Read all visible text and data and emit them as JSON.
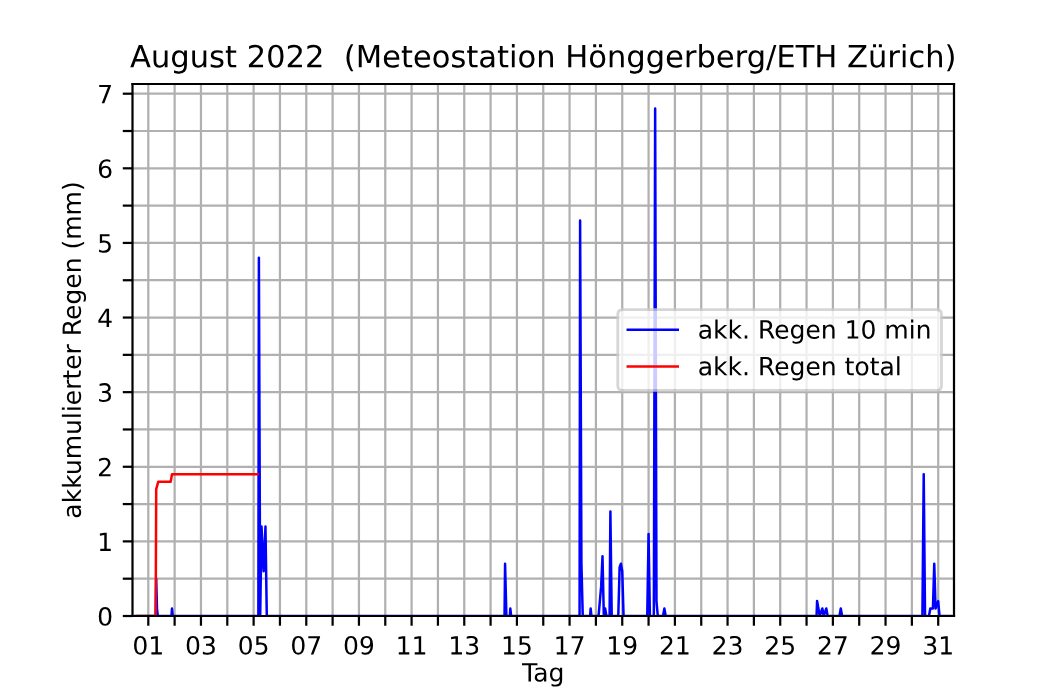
{
  "chart_data": {
    "type": "line",
    "title": "August 2022  (Meteostation Hönggerberg/ETH Zürich)",
    "xlabel": "Tag",
    "ylabel": "akkumulierter Regen (mm)",
    "series": [
      {
        "name": "akk. Regen 10 min",
        "color": "#0000ff",
        "x": [
          0.5,
          1.28,
          1.3,
          1.33,
          1.36,
          1.88,
          1.9,
          1.93,
          5.18,
          5.2,
          5.25,
          5.3,
          5.38,
          5.45,
          5.5,
          14.53,
          14.55,
          14.6,
          14.73,
          14.75,
          14.78,
          17.38,
          17.4,
          17.45,
          17.5,
          17.78,
          17.8,
          17.83,
          18.1,
          18.15,
          18.2,
          18.25,
          18.3,
          18.35,
          18.4,
          18.52,
          18.55,
          18.6,
          18.85,
          18.9,
          18.95,
          19.0,
          19.05,
          19.95,
          20.0,
          20.05,
          20.2,
          20.25,
          20.3,
          20.35,
          20.55,
          20.6,
          20.65,
          26.38,
          26.4,
          26.45,
          26.5,
          26.6,
          26.65,
          26.75,
          26.8,
          27.25,
          27.3,
          27.35,
          30.4,
          30.45,
          30.5,
          30.65,
          30.7,
          30.8,
          30.85,
          30.9,
          31.0,
          31.05,
          31.5
        ],
        "values": [
          0,
          0,
          0.5,
          0.1,
          0,
          0,
          0.1,
          0,
          0,
          4.8,
          0,
          1.2,
          0.6,
          1.2,
          0,
          0,
          0.7,
          0,
          0,
          0.1,
          0,
          0,
          5.3,
          0.7,
          0,
          0,
          0.1,
          0,
          0,
          0.2,
          0.4,
          0.8,
          0,
          0.1,
          0,
          0,
          1.4,
          0,
          0,
          0.65,
          0.7,
          0.6,
          0,
          0,
          1.1,
          0,
          0,
          6.8,
          0.2,
          0,
          0,
          0.1,
          0,
          0,
          0.2,
          0.1,
          0,
          0.1,
          0,
          0.1,
          0,
          0,
          0.1,
          0,
          0,
          1.9,
          0,
          0,
          0.1,
          0.1,
          0.7,
          0.1,
          0.2,
          0,
          0
        ]
      },
      {
        "name": "akk. Regen total",
        "color": "#ff0000",
        "x": [
          0.6,
          1.28,
          1.3,
          1.38,
          1.85,
          1.9,
          5.15
        ],
        "values": [
          0,
          0,
          1.7,
          1.8,
          1.8,
          1.9,
          1.9
        ]
      }
    ],
    "xlim": [
      0.4,
      31.6
    ],
    "ylim": [
      0,
      7.13
    ],
    "xticks": [
      {
        "value": 1,
        "label": "01"
      },
      {
        "value": 2,
        "label": null
      },
      {
        "value": 3,
        "label": "03"
      },
      {
        "value": 4,
        "label": null
      },
      {
        "value": 5,
        "label": "05"
      },
      {
        "value": 6,
        "label": null
      },
      {
        "value": 7,
        "label": "07"
      },
      {
        "value": 8,
        "label": null
      },
      {
        "value": 9,
        "label": "09"
      },
      {
        "value": 10,
        "label": null
      },
      {
        "value": 11,
        "label": "11"
      },
      {
        "value": 12,
        "label": null
      },
      {
        "value": 13,
        "label": "13"
      },
      {
        "value": 14,
        "label": null
      },
      {
        "value": 15,
        "label": "15"
      },
      {
        "value": 16,
        "label": null
      },
      {
        "value": 17,
        "label": "17"
      },
      {
        "value": 18,
        "label": null
      },
      {
        "value": 19,
        "label": "19"
      },
      {
        "value": 20,
        "label": null
      },
      {
        "value": 21,
        "label": "21"
      },
      {
        "value": 22,
        "label": null
      },
      {
        "value": 23,
        "label": "23"
      },
      {
        "value": 24,
        "label": null
      },
      {
        "value": 25,
        "label": "25"
      },
      {
        "value": 26,
        "label": null
      },
      {
        "value": 27,
        "label": "27"
      },
      {
        "value": 28,
        "label": null
      },
      {
        "value": 29,
        "label": "29"
      },
      {
        "value": 30,
        "label": null
      },
      {
        "value": 31,
        "label": "31"
      }
    ],
    "yticks": [
      0,
      {
        "value": 0.5,
        "label": null
      },
      1,
      {
        "value": 1.5,
        "label": null
      },
      2,
      {
        "value": 2.5,
        "label": null
      },
      3,
      {
        "value": 3.5,
        "label": null
      },
      4,
      {
        "value": 4.5,
        "label": null
      },
      5,
      {
        "value": 5.5,
        "label": null
      },
      6,
      {
        "value": 6.5,
        "label": null
      },
      7
    ],
    "grid": true,
    "legend": "center right",
    "line_style": "solid",
    "marker": "none"
  }
}
